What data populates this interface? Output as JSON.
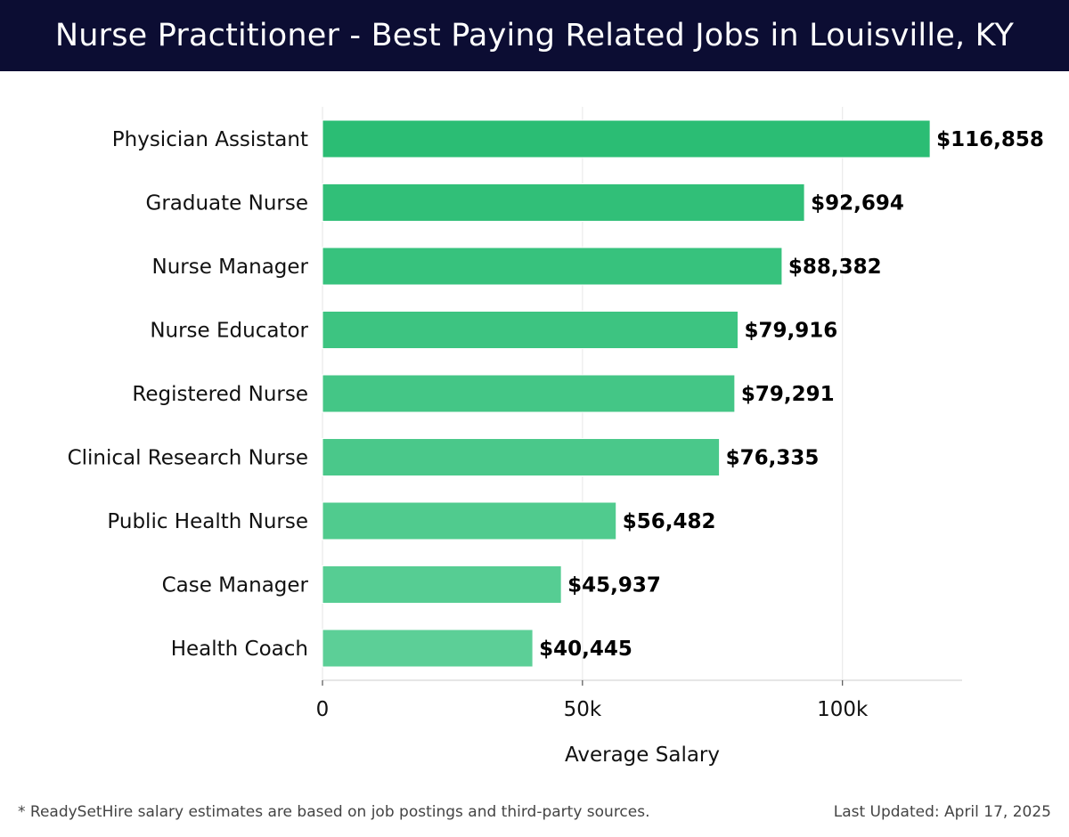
{
  "header": {
    "title": "Nurse Practitioner - Best Paying Related Jobs in Louisville, KY"
  },
  "footer": {
    "note": "* ReadySetHire salary estimates are based on job postings and third-party sources.",
    "updated": "Last Updated: April 17, 2025"
  },
  "chart_data": {
    "type": "bar",
    "orientation": "horizontal",
    "title": "Nurse Practitioner - Best Paying Related Jobs in Louisville, KY",
    "xlabel": "Average Salary",
    "ylabel": "",
    "xlim": [
      0,
      123000
    ],
    "x_ticks": [
      0,
      50000,
      100000
    ],
    "x_tick_labels": [
      "0",
      "50k",
      "100k"
    ],
    "grid": true,
    "categories": [
      "Physician Assistant",
      "Graduate Nurse",
      "Nurse Manager",
      "Nurse Educator",
      "Registered Nurse",
      "Clinical Research Nurse",
      "Public Health Nurse",
      "Case Manager",
      "Health Coach"
    ],
    "values": [
      116858,
      92694,
      88382,
      79916,
      79291,
      76335,
      56482,
      45937,
      40445
    ],
    "value_labels": [
      "$116,858",
      "$92,694",
      "$88,382",
      "$79,916",
      "$79,291",
      "$76,335",
      "$56,482",
      "$45,937",
      "$40,445"
    ],
    "colors": {
      "bar_top": "#2bbd74",
      "bar_bottom": "#5ccf97",
      "grid": "#e6e6e6",
      "axis": "#cccccc",
      "label": "#111111",
      "value_label": "#000000"
    }
  }
}
